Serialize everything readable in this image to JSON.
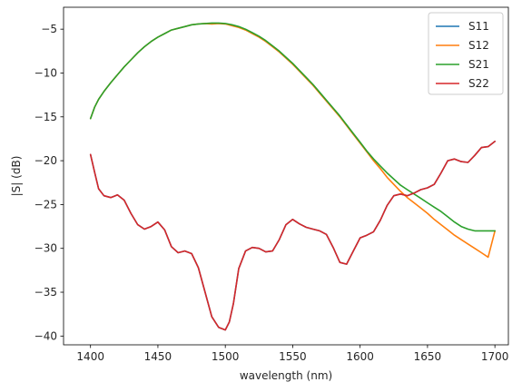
{
  "chart_data": {
    "type": "line",
    "title": "",
    "xlabel": "wavelength (nm)",
    "ylabel": "|S| (dB)",
    "xlim": [
      1380,
      1710
    ],
    "ylim": [
      -41,
      -2.5
    ],
    "x_ticks": [
      1400,
      1450,
      1500,
      1550,
      1600,
      1650,
      1700
    ],
    "x_tick_labels": [
      "1400",
      "1450",
      "1500",
      "1550",
      "1600",
      "1650",
      "1700"
    ],
    "y_ticks": [
      -40,
      -35,
      -30,
      -25,
      -20,
      -15,
      -10,
      -5
    ],
    "y_tick_labels": [
      "−40",
      "−35",
      "−30",
      "−25",
      "−20",
      "−15",
      "−10",
      "−5"
    ],
    "grid": false,
    "legend_position": "top-right",
    "series": [
      {
        "name": "S11",
        "color": "#1f77b4",
        "x": [
          1400,
          1403,
          1406,
          1410,
          1415,
          1420,
          1425,
          1430,
          1435,
          1440,
          1445,
          1450,
          1455,
          1460,
          1465,
          1470,
          1475,
          1480,
          1485,
          1490,
          1495,
          1500,
          1503,
          1506,
          1510,
          1515,
          1520,
          1525,
          1530,
          1535,
          1540,
          1545,
          1550,
          1555,
          1560,
          1565,
          1570,
          1575,
          1580,
          1585,
          1590,
          1595,
          1600,
          1605,
          1610,
          1615,
          1620,
          1625,
          1630,
          1635,
          1640,
          1645,
          1650,
          1655,
          1660,
          1665,
          1670,
          1675,
          1680,
          1685,
          1690,
          1695,
          1700
        ],
        "y": [
          -19.3,
          -21.3,
          -23.2,
          -24.0,
          -24.2,
          -23.9,
          -24.5,
          -26.0,
          -27.3,
          -27.8,
          -27.5,
          -27.0,
          -27.9,
          -29.8,
          -30.5,
          -30.3,
          -30.6,
          -32.2,
          -35.0,
          -37.8,
          -39.0,
          -39.3,
          -38.4,
          -36.3,
          -32.3,
          -30.3,
          -29.9,
          -30.0,
          -30.4,
          -30.3,
          -29.0,
          -27.3,
          -26.7,
          -27.2,
          -27.6,
          -27.8,
          -28.0,
          -28.4,
          -29.9,
          -31.6,
          -31.8,
          -30.3,
          -28.8,
          -28.5,
          -28.1,
          -26.8,
          -25.1,
          -24.0,
          -23.8,
          -24.0,
          -23.7,
          -23.3,
          -23.1,
          -22.7,
          -21.4,
          -20.0,
          -19.8,
          -20.1,
          -20.2,
          -19.4,
          -18.5,
          -18.4,
          -17.8
        ]
      },
      {
        "name": "S12",
        "color": "#ff7f0e",
        "x": [
          1400,
          1403,
          1406,
          1410,
          1415,
          1420,
          1425,
          1430,
          1435,
          1440,
          1445,
          1450,
          1455,
          1460,
          1465,
          1470,
          1475,
          1480,
          1485,
          1490,
          1495,
          1500,
          1505,
          1510,
          1515,
          1520,
          1525,
          1530,
          1535,
          1540,
          1545,
          1550,
          1555,
          1560,
          1565,
          1570,
          1575,
          1580,
          1585,
          1590,
          1595,
          1600,
          1605,
          1610,
          1615,
          1620,
          1625,
          1630,
          1635,
          1640,
          1645,
          1650,
          1655,
          1660,
          1665,
          1670,
          1675,
          1680,
          1685,
          1690,
          1695,
          1700
        ],
        "y": [
          -15.2,
          -13.9,
          -13.0,
          -12.1,
          -11.1,
          -10.2,
          -9.3,
          -8.5,
          -7.7,
          -7.0,
          -6.4,
          -5.9,
          -5.5,
          -5.1,
          -4.9,
          -4.7,
          -4.5,
          -4.4,
          -4.35,
          -4.4,
          -4.35,
          -4.4,
          -4.6,
          -4.8,
          -5.1,
          -5.5,
          -5.9,
          -6.4,
          -7.0,
          -7.6,
          -8.3,
          -9.0,
          -9.8,
          -10.6,
          -11.4,
          -12.3,
          -13.2,
          -14.1,
          -15.0,
          -16.0,
          -17.0,
          -18.0,
          -19.0,
          -20.0,
          -20.9,
          -21.9,
          -22.7,
          -23.5,
          -24.2,
          -24.8,
          -25.4,
          -26.0,
          -26.7,
          -27.3,
          -27.9,
          -28.5,
          -29.0,
          -29.5,
          -30.0,
          -30.5,
          -31.0,
          -28.0
        ]
      },
      {
        "name": "S21",
        "color": "#2ca02c",
        "x": [
          1400,
          1403,
          1406,
          1410,
          1415,
          1420,
          1425,
          1430,
          1435,
          1440,
          1445,
          1450,
          1455,
          1460,
          1465,
          1470,
          1475,
          1480,
          1485,
          1490,
          1495,
          1500,
          1505,
          1510,
          1515,
          1520,
          1525,
          1530,
          1535,
          1540,
          1545,
          1550,
          1555,
          1560,
          1565,
          1570,
          1575,
          1580,
          1585,
          1590,
          1595,
          1600,
          1605,
          1610,
          1615,
          1620,
          1625,
          1630,
          1635,
          1640,
          1645,
          1650,
          1655,
          1660,
          1665,
          1670,
          1675,
          1680,
          1685,
          1690,
          1695,
          1700
        ],
        "y": [
          -15.2,
          -13.9,
          -13.0,
          -12.1,
          -11.1,
          -10.2,
          -9.3,
          -8.5,
          -7.7,
          -7.0,
          -6.4,
          -5.9,
          -5.5,
          -5.1,
          -4.9,
          -4.7,
          -4.5,
          -4.4,
          -4.35,
          -4.3,
          -4.3,
          -4.35,
          -4.5,
          -4.7,
          -5.0,
          -5.4,
          -5.8,
          -6.3,
          -6.9,
          -7.5,
          -8.2,
          -8.9,
          -9.7,
          -10.5,
          -11.3,
          -12.2,
          -13.1,
          -14.0,
          -14.9,
          -15.9,
          -16.9,
          -17.9,
          -18.9,
          -19.8,
          -20.6,
          -21.4,
          -22.1,
          -22.8,
          -23.3,
          -23.8,
          -24.3,
          -24.8,
          -25.3,
          -25.8,
          -26.4,
          -27.0,
          -27.5,
          -27.8,
          -28.0,
          -28.0,
          -28.0,
          -28.0
        ]
      },
      {
        "name": "S22",
        "color": "#d62728",
        "x": [
          1400,
          1403,
          1406,
          1410,
          1415,
          1420,
          1425,
          1430,
          1435,
          1440,
          1445,
          1450,
          1455,
          1460,
          1465,
          1470,
          1475,
          1480,
          1485,
          1490,
          1495,
          1500,
          1503,
          1506,
          1510,
          1515,
          1520,
          1525,
          1530,
          1535,
          1540,
          1545,
          1550,
          1555,
          1560,
          1565,
          1570,
          1575,
          1580,
          1585,
          1590,
          1595,
          1600,
          1605,
          1610,
          1615,
          1620,
          1625,
          1630,
          1635,
          1640,
          1645,
          1650,
          1655,
          1660,
          1665,
          1670,
          1675,
          1680,
          1685,
          1690,
          1695,
          1700
        ],
        "y": [
          -19.3,
          -21.3,
          -23.2,
          -24.0,
          -24.2,
          -23.9,
          -24.5,
          -26.0,
          -27.3,
          -27.8,
          -27.5,
          -27.0,
          -27.9,
          -29.8,
          -30.5,
          -30.3,
          -30.6,
          -32.2,
          -35.0,
          -37.8,
          -39.0,
          -39.3,
          -38.4,
          -36.3,
          -32.3,
          -30.3,
          -29.9,
          -30.0,
          -30.4,
          -30.3,
          -29.0,
          -27.3,
          -26.7,
          -27.2,
          -27.6,
          -27.8,
          -28.0,
          -28.4,
          -29.9,
          -31.6,
          -31.8,
          -30.3,
          -28.8,
          -28.5,
          -28.1,
          -26.8,
          -25.1,
          -24.0,
          -23.8,
          -24.0,
          -23.7,
          -23.3,
          -23.1,
          -22.7,
          -21.4,
          -20.0,
          -19.8,
          -20.1,
          -20.2,
          -19.4,
          -18.5,
          -18.4,
          -17.8
        ]
      }
    ]
  }
}
